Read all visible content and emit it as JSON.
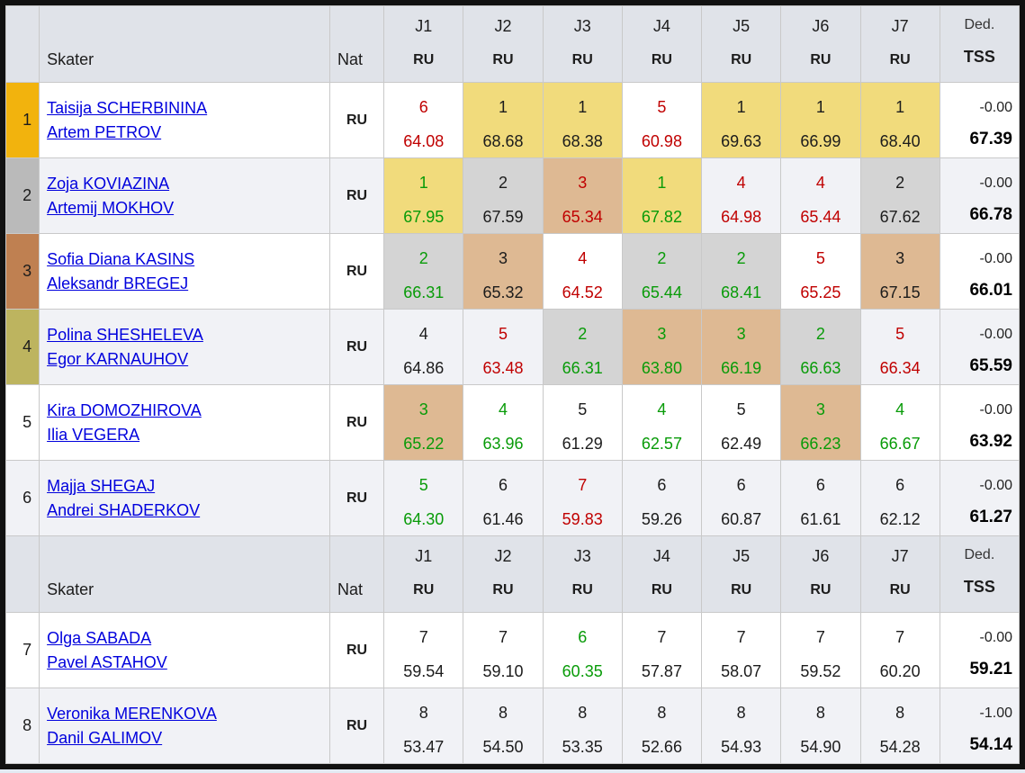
{
  "colors": {
    "header_bg": "#e0e3e9",
    "row_alt_bg": "#f1f2f6",
    "cell_yellow": "#f1db7c",
    "cell_gray": "#d4d4d4",
    "cell_tan": "#deb993",
    "rank_gold": "#f2b30d",
    "rank_silver": "#bababa",
    "rank_bronze": "#bf8051",
    "rank_olive": "#bdb45f",
    "text_red": "#c00000",
    "text_green": "#089b08",
    "link_blue": "#0000dd"
  },
  "header": {
    "skater": "Skater",
    "nat": "Nat",
    "judges": [
      "J1",
      "J2",
      "J3",
      "J4",
      "J5",
      "J6",
      "J7"
    ],
    "judge_nat": "RU",
    "ded": "Ded.",
    "tss": "TSS"
  },
  "header_before_rows": [
    0,
    6
  ],
  "rows": [
    {
      "rank": "1",
      "rank_color": "gold",
      "names": [
        "Taisija SCHERBININA",
        "Artem PETROV"
      ],
      "nat": "RU",
      "judges": [
        {
          "place": "6",
          "score": "64.08",
          "color": "red",
          "bg": "none"
        },
        {
          "place": "1",
          "score": "68.68",
          "color": "black",
          "bg": "yellow"
        },
        {
          "place": "1",
          "score": "68.38",
          "color": "black",
          "bg": "yellow"
        },
        {
          "place": "5",
          "score": "60.98",
          "color": "red",
          "bg": "none"
        },
        {
          "place": "1",
          "score": "69.63",
          "color": "black",
          "bg": "yellow"
        },
        {
          "place": "1",
          "score": "66.99",
          "color": "black",
          "bg": "yellow"
        },
        {
          "place": "1",
          "score": "68.40",
          "color": "black",
          "bg": "yellow"
        }
      ],
      "ded": "-0.00",
      "tss": "67.39"
    },
    {
      "rank": "2",
      "rank_color": "silver",
      "names": [
        "Zoja KOVIAZINA",
        "Artemij MOKHOV"
      ],
      "nat": "RU",
      "judges": [
        {
          "place": "1",
          "score": "67.95",
          "color": "green",
          "bg": "yellow"
        },
        {
          "place": "2",
          "score": "67.59",
          "color": "black",
          "bg": "gray"
        },
        {
          "place": "3",
          "score": "65.34",
          "color": "red",
          "bg": "tan"
        },
        {
          "place": "1",
          "score": "67.82",
          "color": "green",
          "bg": "yellow"
        },
        {
          "place": "4",
          "score": "64.98",
          "color": "red",
          "bg": "none"
        },
        {
          "place": "4",
          "score": "65.44",
          "color": "red",
          "bg": "none"
        },
        {
          "place": "2",
          "score": "67.62",
          "color": "black",
          "bg": "gray"
        }
      ],
      "ded": "-0.00",
      "tss": "66.78"
    },
    {
      "rank": "3",
      "rank_color": "bronze",
      "names": [
        "Sofia Diana KASINS",
        "Aleksandr BREGEJ"
      ],
      "nat": "RU",
      "judges": [
        {
          "place": "2",
          "score": "66.31",
          "color": "green",
          "bg": "gray"
        },
        {
          "place": "3",
          "score": "65.32",
          "color": "black",
          "bg": "tan"
        },
        {
          "place": "4",
          "score": "64.52",
          "color": "red",
          "bg": "none"
        },
        {
          "place": "2",
          "score": "65.44",
          "color": "green",
          "bg": "gray"
        },
        {
          "place": "2",
          "score": "68.41",
          "color": "green",
          "bg": "gray"
        },
        {
          "place": "5",
          "score": "65.25",
          "color": "red",
          "bg": "none"
        },
        {
          "place": "3",
          "score": "67.15",
          "color": "black",
          "bg": "tan"
        }
      ],
      "ded": "-0.00",
      "tss": "66.01"
    },
    {
      "rank": "4",
      "rank_color": "olive",
      "names": [
        "Polina SHESHELEVA",
        "Egor KARNAUHOV"
      ],
      "nat": "RU",
      "judges": [
        {
          "place": "4",
          "score": "64.86",
          "color": "black",
          "bg": "none"
        },
        {
          "place": "5",
          "score": "63.48",
          "color": "red",
          "bg": "none"
        },
        {
          "place": "2",
          "score": "66.31",
          "color": "green",
          "bg": "gray"
        },
        {
          "place": "3",
          "score": "63.80",
          "color": "green",
          "bg": "tan"
        },
        {
          "place": "3",
          "score": "66.19",
          "color": "green",
          "bg": "tan"
        },
        {
          "place": "2",
          "score": "66.63",
          "color": "green",
          "bg": "gray"
        },
        {
          "place": "5",
          "score": "66.34",
          "color": "red",
          "bg": "none"
        }
      ],
      "ded": "-0.00",
      "tss": "65.59"
    },
    {
      "rank": "5",
      "rank_color": "none",
      "names": [
        "Kira DOMOZHIROVA",
        "Ilia VEGERA"
      ],
      "nat": "RU",
      "judges": [
        {
          "place": "3",
          "score": "65.22",
          "color": "green",
          "bg": "tan"
        },
        {
          "place": "4",
          "score": "63.96",
          "color": "green",
          "bg": "none"
        },
        {
          "place": "5",
          "score": "61.29",
          "color": "black",
          "bg": "none"
        },
        {
          "place": "4",
          "score": "62.57",
          "color": "green",
          "bg": "none"
        },
        {
          "place": "5",
          "score": "62.49",
          "color": "black",
          "bg": "none"
        },
        {
          "place": "3",
          "score": "66.23",
          "color": "green",
          "bg": "tan"
        },
        {
          "place": "4",
          "score": "66.67",
          "color": "green",
          "bg": "none"
        }
      ],
      "ded": "-0.00",
      "tss": "63.92"
    },
    {
      "rank": "6",
      "rank_color": "none",
      "names": [
        "Majja SHEGAJ",
        "Andrei SHADERKOV"
      ],
      "nat": "RU",
      "judges": [
        {
          "place": "5",
          "score": "64.30",
          "color": "green",
          "bg": "none"
        },
        {
          "place": "6",
          "score": "61.46",
          "color": "black",
          "bg": "none"
        },
        {
          "place": "7",
          "score": "59.83",
          "color": "red",
          "bg": "none"
        },
        {
          "place": "6",
          "score": "59.26",
          "color": "black",
          "bg": "none"
        },
        {
          "place": "6",
          "score": "60.87",
          "color": "black",
          "bg": "none"
        },
        {
          "place": "6",
          "score": "61.61",
          "color": "black",
          "bg": "none"
        },
        {
          "place": "6",
          "score": "62.12",
          "color": "black",
          "bg": "none"
        }
      ],
      "ded": "-0.00",
      "tss": "61.27"
    },
    {
      "rank": "7",
      "rank_color": "none",
      "names": [
        "Olga SABADA",
        "Pavel ASTAHOV"
      ],
      "nat": "RU",
      "judges": [
        {
          "place": "7",
          "score": "59.54",
          "color": "black",
          "bg": "none"
        },
        {
          "place": "7",
          "score": "59.10",
          "color": "black",
          "bg": "none"
        },
        {
          "place": "6",
          "score": "60.35",
          "color": "green",
          "bg": "none"
        },
        {
          "place": "7",
          "score": "57.87",
          "color": "black",
          "bg": "none"
        },
        {
          "place": "7",
          "score": "58.07",
          "color": "black",
          "bg": "none"
        },
        {
          "place": "7",
          "score": "59.52",
          "color": "black",
          "bg": "none"
        },
        {
          "place": "7",
          "score": "60.20",
          "color": "black",
          "bg": "none"
        }
      ],
      "ded": "-0.00",
      "tss": "59.21"
    },
    {
      "rank": "8",
      "rank_color": "none",
      "names": [
        "Veronika MERENKOVA",
        "Danil GALIMOV"
      ],
      "nat": "RU",
      "judges": [
        {
          "place": "8",
          "score": "53.47",
          "color": "black",
          "bg": "none"
        },
        {
          "place": "8",
          "score": "54.50",
          "color": "black",
          "bg": "none"
        },
        {
          "place": "8",
          "score": "53.35",
          "color": "black",
          "bg": "none"
        },
        {
          "place": "8",
          "score": "52.66",
          "color": "black",
          "bg": "none"
        },
        {
          "place": "8",
          "score": "54.93",
          "color": "black",
          "bg": "none"
        },
        {
          "place": "8",
          "score": "54.90",
          "color": "black",
          "bg": "none"
        },
        {
          "place": "8",
          "score": "54.28",
          "color": "black",
          "bg": "none"
        }
      ],
      "ded": "-1.00",
      "tss": "54.14"
    }
  ]
}
